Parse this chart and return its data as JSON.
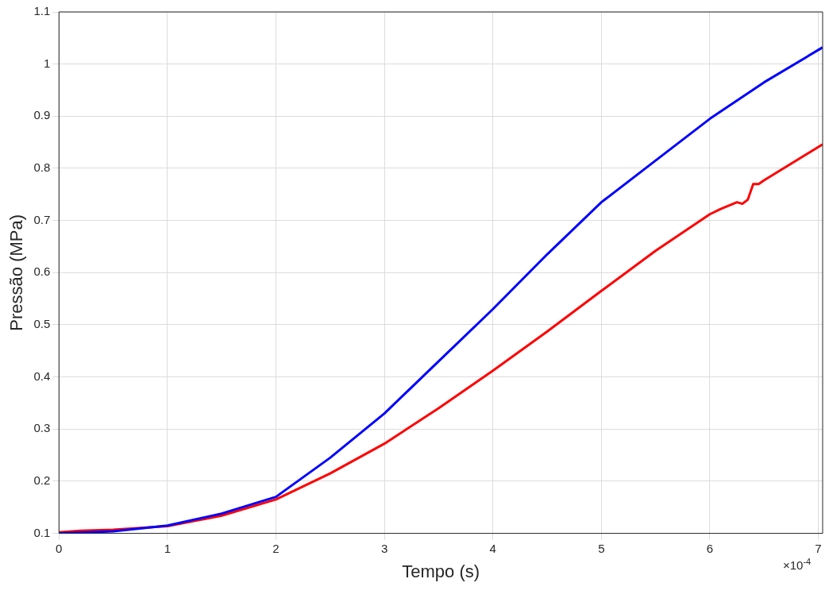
{
  "chart_data": {
    "type": "line",
    "xlabel": "Tempo (s)",
    "ylabel": "Pressão (MPa)",
    "xlim": [
      0,
      7.04
    ],
    "xticks": [
      0,
      1,
      2,
      3,
      4,
      5,
      6,
      7
    ],
    "ylim": [
      0.1,
      1.1
    ],
    "yticks": [
      0.1,
      0.2,
      0.3,
      0.4,
      0.5,
      0.6,
      0.7,
      0.8,
      0.9,
      1,
      1.1
    ],
    "grid": true,
    "legend": false,
    "marker": "none",
    "line_style": "solid",
    "annotations": [
      "×10$^{-4}$"
    ],
    "series": [
      {
        "color": "#0000ff",
        "x": [
          0,
          0.5,
          1,
          1.5,
          2,
          2.5,
          3,
          3.5,
          4,
          4.5,
          5,
          5.5,
          6,
          6.5,
          7.04
        ],
        "values": [
          0.1,
          0.104,
          0.115,
          0.138,
          0.17,
          0.245,
          0.33,
          0.43,
          0.53,
          0.635,
          0.735,
          0.815,
          0.895,
          0.965,
          1.032
        ]
      },
      {
        "color": "#ff0000",
        "x": [
          0,
          0.2,
          0.5,
          1,
          1.5,
          2,
          2.5,
          3,
          3.5,
          4,
          4.5,
          5,
          5.5,
          6,
          6.1,
          6.25,
          6.3,
          6.35,
          6.4,
          6.45,
          6.5,
          7.04
        ],
        "values": [
          0.102,
          0.105,
          0.107,
          0.114,
          0.134,
          0.165,
          0.215,
          0.272,
          0.34,
          0.412,
          0.487,
          0.565,
          0.642,
          0.712,
          0.722,
          0.735,
          0.732,
          0.74,
          0.77,
          0.77,
          0.777,
          0.846
        ]
      }
    ]
  }
}
